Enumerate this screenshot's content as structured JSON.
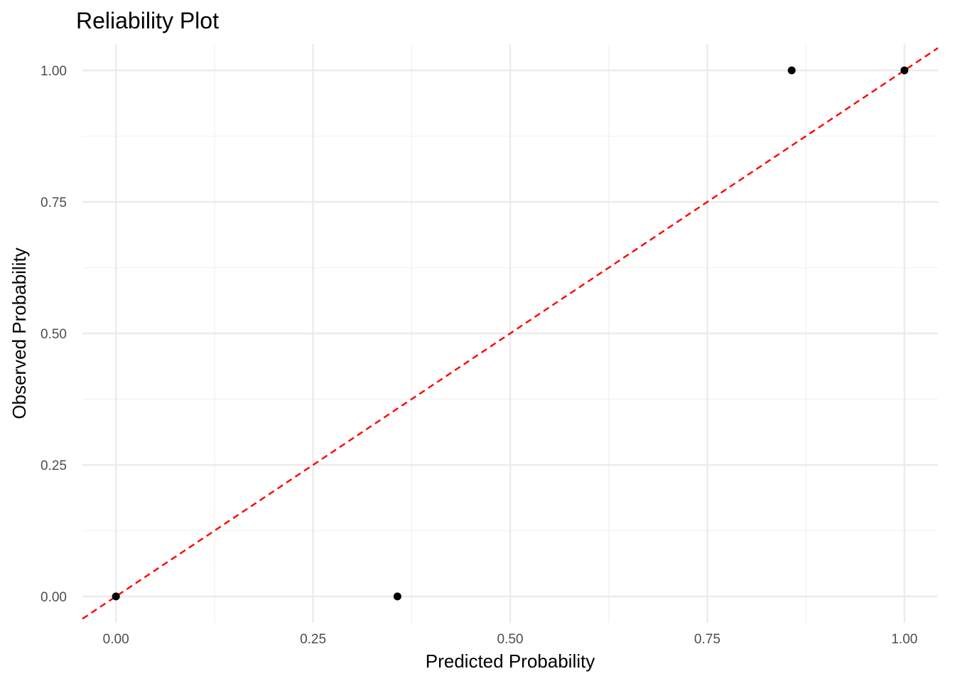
{
  "chart_data": {
    "type": "scatter",
    "title": "Reliability Plot",
    "xlabel": "Predicted Probability",
    "ylabel": "Observed Probability",
    "xlim": [
      -0.0425,
      1.0425
    ],
    "ylim": [
      -0.05,
      1.05
    ],
    "grid": true,
    "x_ticks": [
      0,
      0.25,
      0.5,
      0.75,
      1
    ],
    "x_tick_labels": [
      "0.00",
      "0.25",
      "0.50",
      "0.75",
      "1.00"
    ],
    "y_ticks": [
      0,
      0.25,
      0.5,
      0.75,
      1
    ],
    "y_tick_labels": [
      "0.00",
      "0.25",
      "0.50",
      "0.75",
      "1.00"
    ],
    "series": [
      {
        "name": "calibration",
        "x": [
          0.0,
          0.357,
          0.857,
          1.0
        ],
        "y": [
          0.0,
          0.0,
          1.0,
          1.0
        ]
      }
    ],
    "reference_line": {
      "slope": 1,
      "intercept": 0,
      "style": "dashed",
      "color": "#ff0000"
    }
  },
  "colors": {
    "point": "#000000",
    "reference_line": "#ff0000",
    "grid_major": "#ebebeb",
    "grid_minor": "#f2f2f2"
  }
}
